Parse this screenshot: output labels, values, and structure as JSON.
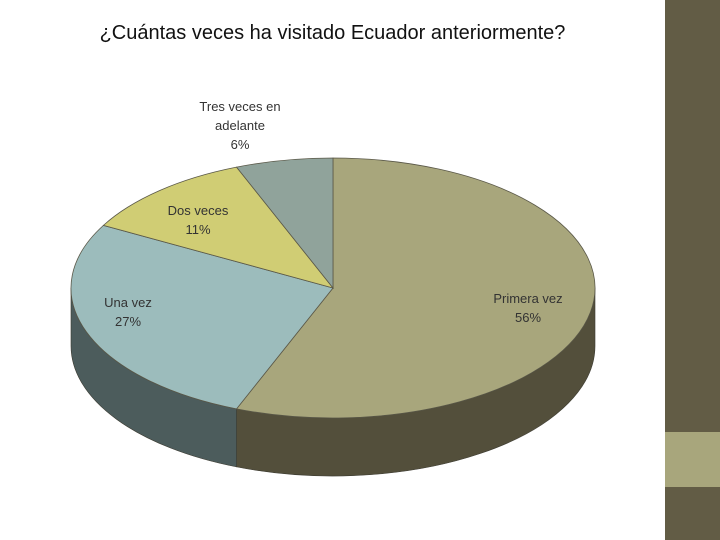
{
  "slide": {
    "title": "¿Cuántas veces ha visitado Ecuador anteriormente?",
    "colors": {
      "side_bar": "#625c45",
      "side_accent": "#a8a67c"
    }
  },
  "chart_data": {
    "type": "pie",
    "title": "¿Cuántas veces ha visitado Ecuador anteriormente?",
    "three_d": true,
    "legend": "none",
    "slices": [
      {
        "label": [
          "Primera vez"
        ],
        "value": 56,
        "value_label": "56%",
        "color": "#a8a67c",
        "side_color": "#534f3b"
      },
      {
        "label": [
          "Una vez"
        ],
        "value": 27,
        "value_label": "27%",
        "color": "#9cbcbc",
        "side_color": "#4c5c5c"
      },
      {
        "label": [
          "Dos veces"
        ],
        "value": 11,
        "value_label": "11%",
        "color": "#d0cd74",
        "side_color": "#66633a"
      },
      {
        "label": [
          "Tres veces en",
          "adelante"
        ],
        "value": 6,
        "value_label": "6%",
        "color": "#90a39b",
        "side_color": "#4c5a55"
      }
    ]
  }
}
